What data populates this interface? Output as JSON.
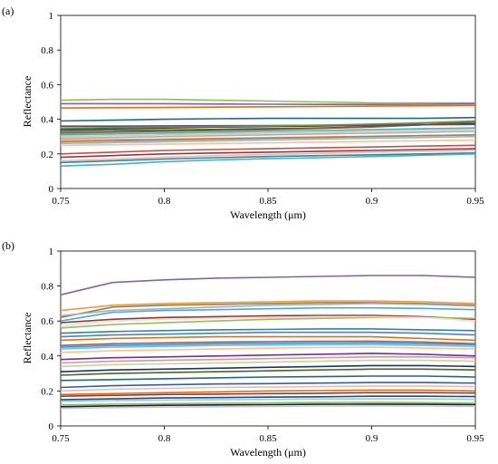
{
  "chart_data": [
    {
      "panel_label": "(a)",
      "type": "line",
      "xlabel": "Wavelength (μm)",
      "ylabel": "Reflectance",
      "xlim": [
        0.75,
        0.95
      ],
      "ylim": [
        0,
        1
      ],
      "xticks": [
        "0.75",
        "0.8",
        "0.85",
        "0.9",
        "0.95"
      ],
      "yticks": [
        "0",
        "0.2",
        "0.4",
        "0.6",
        "0.8",
        "1"
      ],
      "grid": false,
      "x": [
        0.75,
        0.775,
        0.8,
        0.825,
        0.85,
        0.875,
        0.9,
        0.925,
        0.95
      ],
      "series": [
        {
          "color": "#92c050",
          "values": [
            0.51,
            0.515,
            0.515,
            0.51,
            0.505,
            0.5,
            0.495,
            0.495,
            0.495
          ]
        },
        {
          "color": "#8064a2",
          "values": [
            0.49,
            0.49,
            0.49,
            0.488,
            0.487,
            0.486,
            0.486,
            0.487,
            0.49
          ]
        },
        {
          "color": "#e46c0a",
          "values": [
            0.465,
            0.467,
            0.468,
            0.47,
            0.472,
            0.474,
            0.476,
            0.478,
            0.48
          ]
        },
        {
          "color": "#1f6b75",
          "values": [
            0.39,
            0.395,
            0.4,
            0.403,
            0.405,
            0.405,
            0.405,
            0.405,
            0.41
          ]
        },
        {
          "color": "#17375e",
          "values": [
            0.34,
            0.345,
            0.35,
            0.355,
            0.358,
            0.362,
            0.366,
            0.37,
            0.375
          ]
        },
        {
          "color": "#4f6228",
          "values": [
            0.33,
            0.335,
            0.338,
            0.342,
            0.346,
            0.35,
            0.358,
            0.368,
            0.39
          ]
        },
        {
          "color": "#8a5a2b",
          "values": [
            0.32,
            0.325,
            0.33,
            0.335,
            0.34,
            0.347,
            0.355,
            0.368,
            0.385
          ]
        },
        {
          "color": "#4bacc6",
          "values": [
            0.31,
            0.315,
            0.32,
            0.325,
            0.33,
            0.335,
            0.34,
            0.345,
            0.35
          ]
        },
        {
          "color": "#c3d69b",
          "values": [
            0.3,
            0.305,
            0.31,
            0.315,
            0.32,
            0.325,
            0.33,
            0.335,
            0.34
          ]
        },
        {
          "color": "#b7a2cf",
          "values": [
            0.29,
            0.295,
            0.3,
            0.305,
            0.31,
            0.315,
            0.32,
            0.325,
            0.33
          ]
        },
        {
          "color": "#f79646",
          "values": [
            0.28,
            0.283,
            0.286,
            0.29,
            0.294,
            0.298,
            0.302,
            0.306,
            0.31
          ]
        },
        {
          "color": "#948a54",
          "values": [
            0.27,
            0.275,
            0.28,
            0.285,
            0.29,
            0.295,
            0.3,
            0.305,
            0.31
          ]
        },
        {
          "color": "#95b3d7",
          "values": [
            0.26,
            0.265,
            0.27,
            0.275,
            0.28,
            0.285,
            0.29,
            0.295,
            0.3
          ]
        },
        {
          "color": "#fac090",
          "values": [
            0.25,
            0.253,
            0.256,
            0.26,
            0.264,
            0.268,
            0.272,
            0.276,
            0.28
          ]
        },
        {
          "color": "#c0504d",
          "values": [
            0.2,
            0.21,
            0.22,
            0.225,
            0.23,
            0.235,
            0.24,
            0.245,
            0.25
          ]
        },
        {
          "color": "#953735",
          "values": [
            0.18,
            0.19,
            0.2,
            0.205,
            0.21,
            0.215,
            0.22,
            0.225,
            0.23
          ]
        },
        {
          "color": "#e6b9b8",
          "values": [
            0.16,
            0.17,
            0.18,
            0.19,
            0.197,
            0.203,
            0.21,
            0.215,
            0.22
          ]
        },
        {
          "color": "#31849b",
          "values": [
            0.15,
            0.16,
            0.17,
            0.178,
            0.185,
            0.19,
            0.195,
            0.2,
            0.205
          ]
        },
        {
          "color": "#4bacc6",
          "values": [
            0.13,
            0.14,
            0.155,
            0.165,
            0.172,
            0.178,
            0.185,
            0.192,
            0.2
          ]
        },
        {
          "color": "#5f497a",
          "values": [
            0.36,
            0.36,
            0.362,
            0.363,
            0.364,
            0.365,
            0.366,
            0.368,
            0.37
          ]
        },
        {
          "color": "#76923c",
          "values": [
            0.35,
            0.352,
            0.355,
            0.358,
            0.362,
            0.366,
            0.372,
            0.38,
            0.39
          ]
        }
      ]
    },
    {
      "panel_label": "(b)",
      "type": "line",
      "xlabel": "Wavelength (μm)",
      "ylabel": "Reflectance",
      "xlim": [
        0.75,
        0.95
      ],
      "ylim": [
        0,
        1
      ],
      "xticks": [
        "0.75",
        "0.8",
        "0.85",
        "0.9",
        "0.95"
      ],
      "yticks": [
        "0",
        "0.2",
        "0.4",
        "0.6",
        "0.8",
        "1"
      ],
      "grid": false,
      "x": [
        0.75,
        0.775,
        0.8,
        0.825,
        0.85,
        0.875,
        0.9,
        0.925,
        0.95
      ],
      "series": [
        {
          "color": "#8064a2",
          "values": [
            0.75,
            0.82,
            0.835,
            0.845,
            0.85,
            0.855,
            0.86,
            0.86,
            0.85
          ]
        },
        {
          "color": "#f79646",
          "values": [
            0.66,
            0.69,
            0.7,
            0.705,
            0.71,
            0.715,
            0.715,
            0.71,
            0.7
          ]
        },
        {
          "color": "#76923c",
          "values": [
            0.62,
            0.68,
            0.69,
            0.695,
            0.7,
            0.705,
            0.705,
            0.7,
            0.69
          ]
        },
        {
          "color": "#4bacc6",
          "values": [
            0.6,
            0.65,
            0.66,
            0.665,
            0.67,
            0.675,
            0.675,
            0.672,
            0.665
          ]
        },
        {
          "color": "#b7a2cf",
          "values": [
            0.63,
            0.66,
            0.67,
            0.68,
            0.69,
            0.695,
            0.7,
            0.695,
            0.685
          ]
        },
        {
          "color": "#953735",
          "values": [
            0.59,
            0.61,
            0.62,
            0.625,
            0.63,
            0.632,
            0.632,
            0.625,
            0.61
          ]
        },
        {
          "color": "#9bbb59",
          "values": [
            0.56,
            0.58,
            0.59,
            0.6,
            0.61,
            0.615,
            0.62,
            0.62,
            0.615
          ]
        },
        {
          "color": "#f2dcdb",
          "values": [
            0.57,
            0.6,
            0.61,
            0.615,
            0.62,
            0.625,
            0.625,
            0.62,
            0.6
          ]
        },
        {
          "color": "#31849b",
          "values": [
            0.53,
            0.54,
            0.545,
            0.55,
            0.552,
            0.555,
            0.555,
            0.55,
            0.545
          ]
        },
        {
          "color": "#4f81bd",
          "values": [
            0.51,
            0.52,
            0.525,
            0.53,
            0.535,
            0.535,
            0.535,
            0.53,
            0.52
          ]
        },
        {
          "color": "#e46c0a",
          "values": [
            0.49,
            0.5,
            0.505,
            0.51,
            0.51,
            0.51,
            0.51,
            0.5,
            0.49
          ]
        },
        {
          "color": "#c0504d",
          "values": [
            0.46,
            0.47,
            0.475,
            0.48,
            0.482,
            0.484,
            0.485,
            0.48,
            0.47
          ]
        },
        {
          "color": "#8db3e2",
          "values": [
            0.44,
            0.45,
            0.455,
            0.46,
            0.462,
            0.464,
            0.465,
            0.46,
            0.455
          ]
        },
        {
          "color": "#fac090",
          "values": [
            0.42,
            0.43,
            0.435,
            0.44,
            0.445,
            0.448,
            0.45,
            0.445,
            0.44
          ]
        },
        {
          "color": "#7030a0",
          "values": [
            0.38,
            0.39,
            0.395,
            0.4,
            0.405,
            0.41,
            0.415,
            0.41,
            0.4
          ]
        },
        {
          "color": "#d99694",
          "values": [
            0.36,
            0.37,
            0.375,
            0.38,
            0.385,
            0.39,
            0.395,
            0.395,
            0.39
          ]
        },
        {
          "color": "#c3d69b",
          "values": [
            0.34,
            0.35,
            0.355,
            0.36,
            0.365,
            0.37,
            0.375,
            0.375,
            0.37
          ]
        },
        {
          "color": "#17375e",
          "values": [
            0.31,
            0.32,
            0.325,
            0.33,
            0.335,
            0.34,
            0.345,
            0.345,
            0.34
          ]
        },
        {
          "color": "#4f6228",
          "values": [
            0.29,
            0.3,
            0.305,
            0.31,
            0.315,
            0.32,
            0.325,
            0.325,
            0.32
          ]
        },
        {
          "color": "#1f6b75",
          "values": [
            0.26,
            0.265,
            0.27,
            0.275,
            0.28,
            0.282,
            0.285,
            0.285,
            0.28
          ]
        },
        {
          "color": "#366092",
          "values": [
            0.22,
            0.23,
            0.235,
            0.24,
            0.242,
            0.245,
            0.248,
            0.248,
            0.245
          ]
        },
        {
          "color": "#e6b9b8",
          "values": [
            0.2,
            0.21,
            0.215,
            0.22,
            0.222,
            0.225,
            0.228,
            0.228,
            0.225
          ]
        },
        {
          "color": "#e46c0a",
          "values": [
            0.18,
            0.185,
            0.19,
            0.195,
            0.2,
            0.202,
            0.205,
            0.205,
            0.2
          ]
        },
        {
          "color": "#953735",
          "values": [
            0.17,
            0.175,
            0.18,
            0.182,
            0.185,
            0.187,
            0.19,
            0.19,
            0.188
          ]
        },
        {
          "color": "#1f497d",
          "values": [
            0.15,
            0.155,
            0.16,
            0.162,
            0.165,
            0.167,
            0.17,
            0.17,
            0.168
          ]
        },
        {
          "color": "#92cddc",
          "values": [
            0.14,
            0.145,
            0.148,
            0.15,
            0.152,
            0.154,
            0.155,
            0.155,
            0.152
          ]
        },
        {
          "color": "#9bbb59",
          "values": [
            0.12,
            0.125,
            0.128,
            0.13,
            0.132,
            0.134,
            0.135,
            0.133,
            0.13
          ]
        },
        {
          "color": "#0f243e",
          "values": [
            0.11,
            0.115,
            0.118,
            0.12,
            0.122,
            0.124,
            0.125,
            0.124,
            0.122
          ]
        },
        {
          "color": "#ccc1da",
          "values": [
            0.1,
            0.105,
            0.108,
            0.11,
            0.112,
            0.114,
            0.115,
            0.114,
            0.112
          ]
        },
        {
          "color": "#00b0f0",
          "values": [
            0.45,
            0.46,
            0.465,
            0.47,
            0.472,
            0.474,
            0.475,
            0.47,
            0.465
          ]
        }
      ]
    }
  ]
}
